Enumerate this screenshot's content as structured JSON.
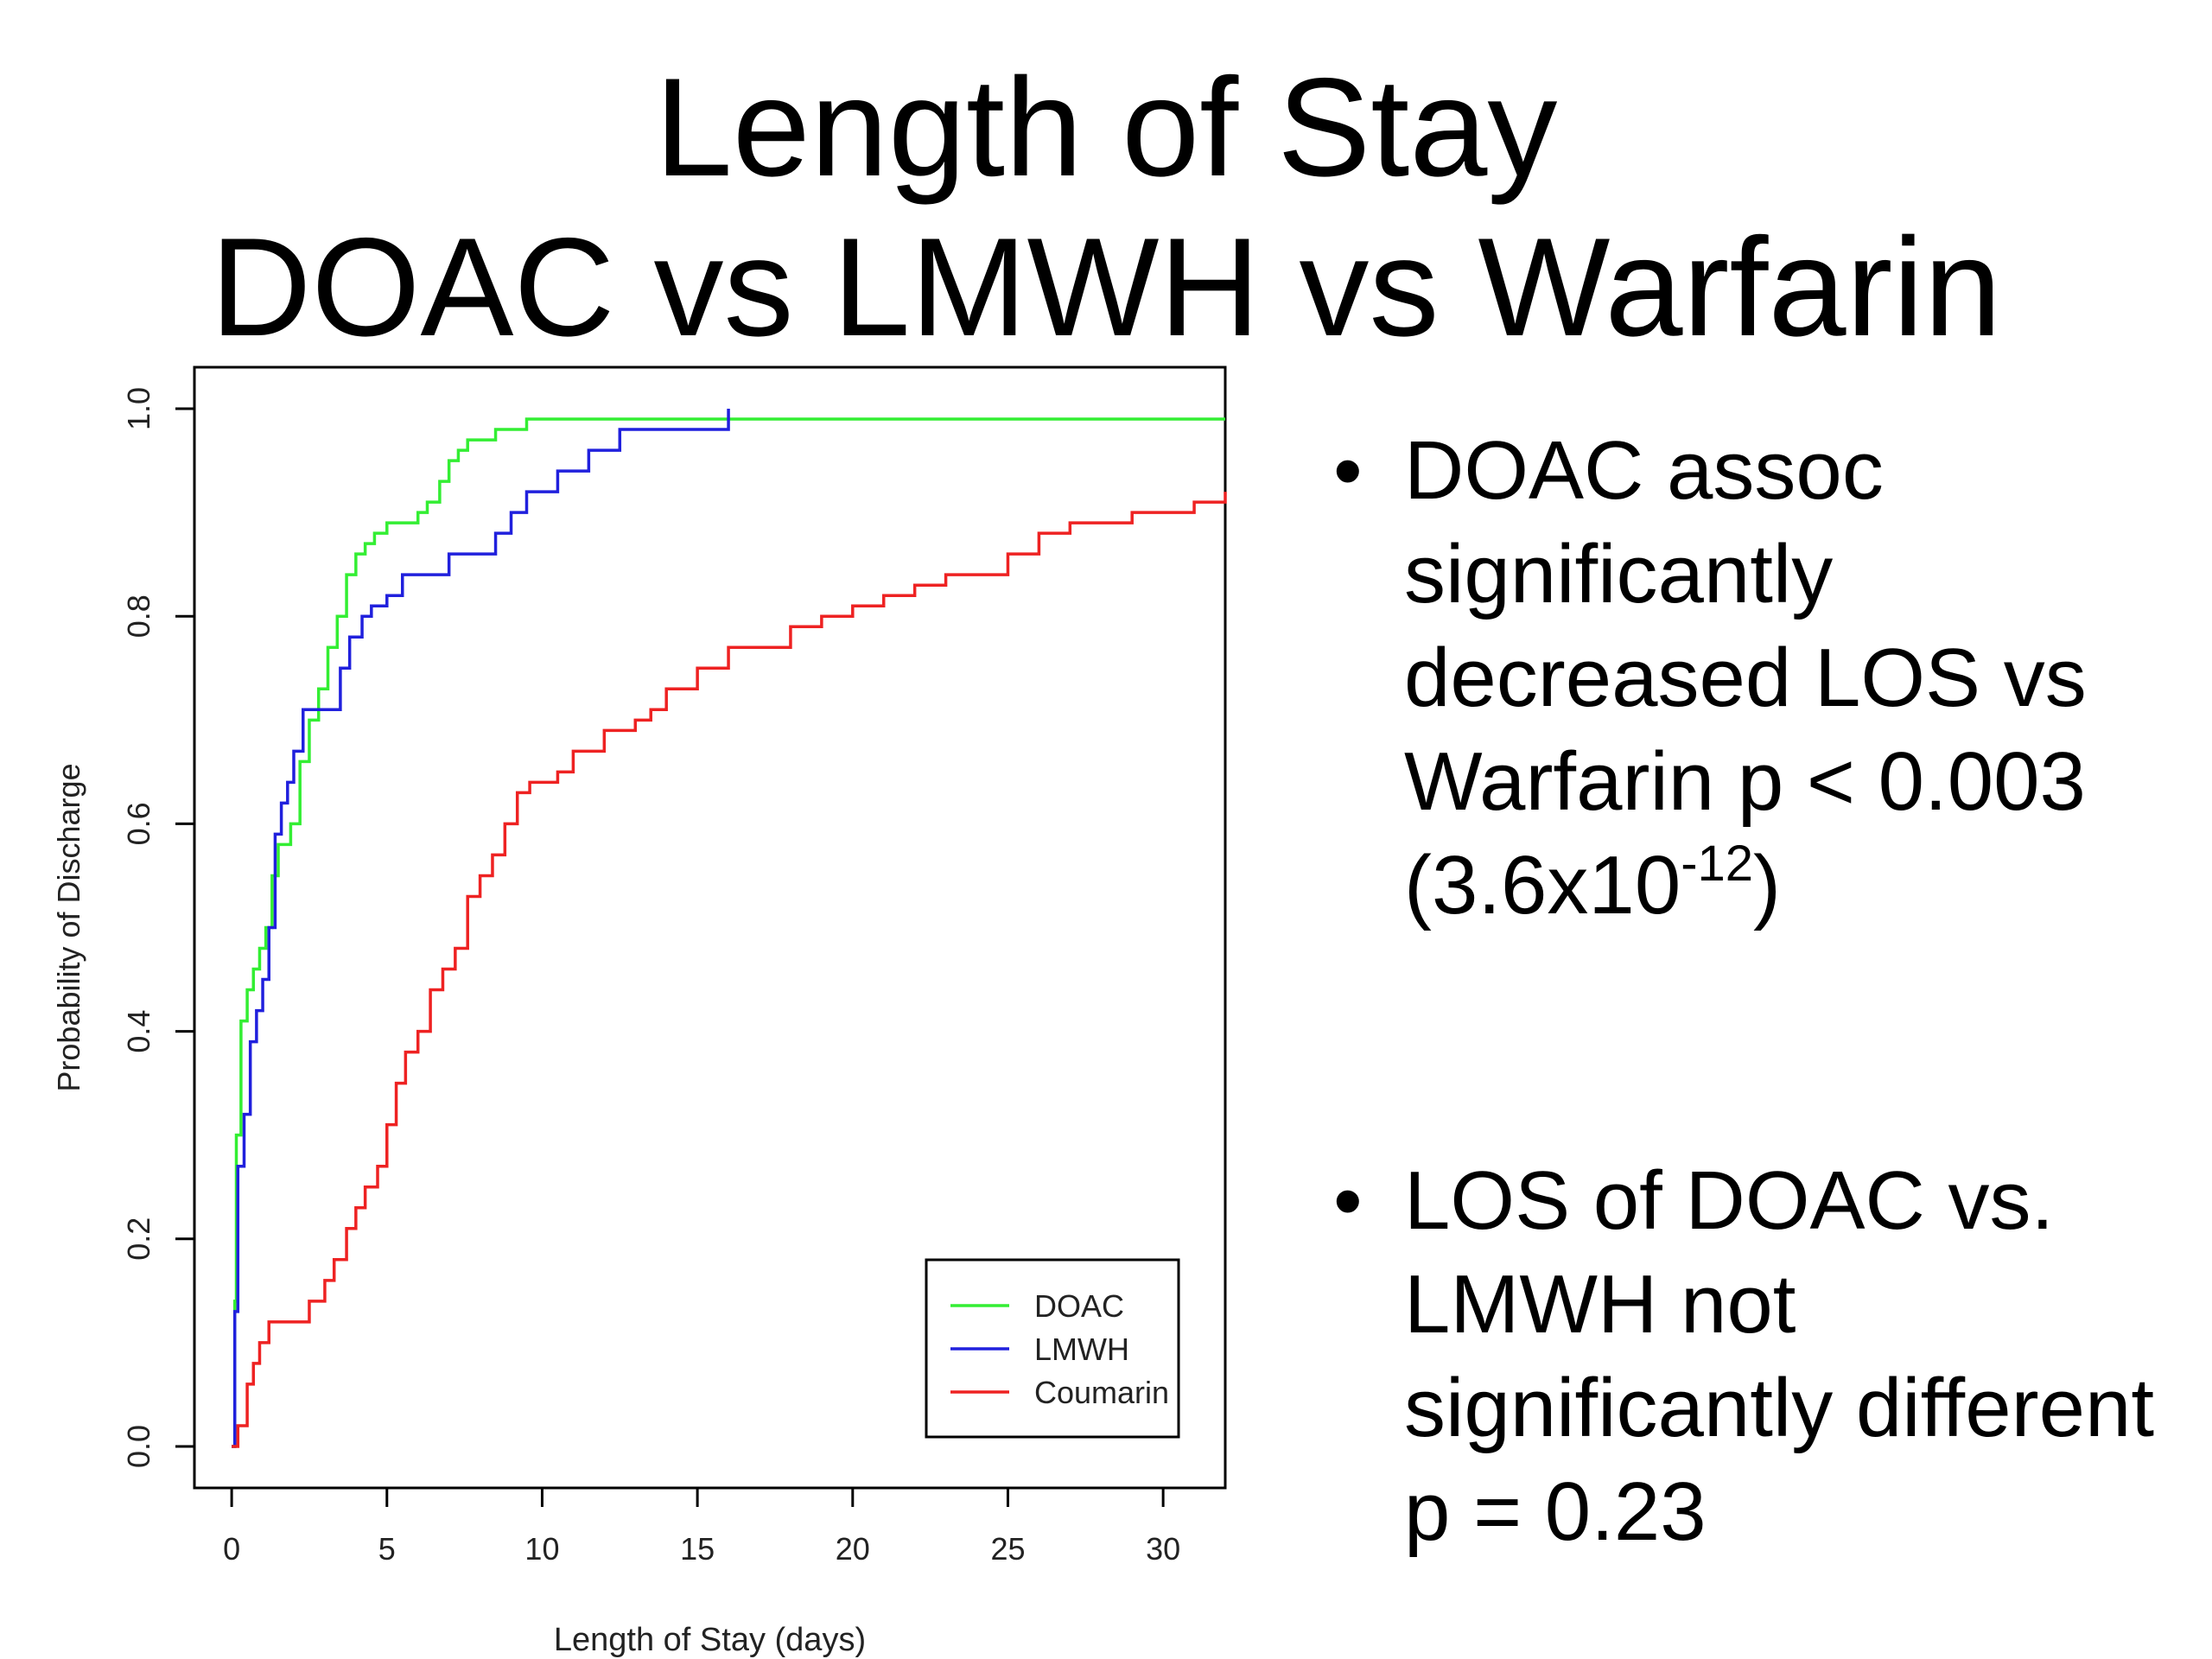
{
  "slide": {
    "title_line1": "Length of Stay",
    "title_line2": "DOAC vs LMWH vs Warfarin",
    "bullets": [
      {
        "marker": "•",
        "text": "DOAC assoc significantly decreased LOS vs Warfarin p < 0.003 (3.6x10",
        "sup": "-12",
        "tail": ")"
      },
      {
        "marker": "•",
        "text": "LOS of DOAC vs. LMWH not significantly different p = 0.23",
        "sup": "",
        "tail": ""
      }
    ]
  },
  "chart_data": {
    "type": "line",
    "step": true,
    "xlabel": "Length of Stay (days)",
    "ylabel": "Probability of Discharge",
    "xlim": [
      -1.2,
      32
    ],
    "ylim": [
      -0.04,
      1.04
    ],
    "xticks": [
      0,
      5,
      10,
      15,
      20,
      25,
      30
    ],
    "yticks": [
      0.0,
      0.2,
      0.4,
      0.6,
      0.8,
      1.0
    ],
    "ytick_labels": [
      "0.0",
      "0.2",
      "0.4",
      "0.6",
      "0.8",
      "1.0"
    ],
    "grid": false,
    "legend": {
      "position": "bottom-right"
    },
    "series": [
      {
        "name": "DOAC",
        "color": "#33ee33",
        "x": [
          0,
          0.1,
          0.15,
          0.3,
          0.5,
          0.7,
          0.9,
          1.1,
          1.3,
          1.5,
          1.7,
          1.9,
          2.2,
          2.5,
          2.8,
          3.1,
          3.4,
          3.7,
          4.0,
          4.3,
          4.6,
          5.0,
          6.0,
          6.3,
          6.7,
          7.0,
          7.3,
          7.6,
          8.0,
          8.5,
          9.0,
          9.5,
          10.0,
          32
        ],
        "y": [
          0.0,
          0.14,
          0.3,
          0.41,
          0.44,
          0.46,
          0.48,
          0.5,
          0.55,
          0.58,
          0.58,
          0.6,
          0.66,
          0.7,
          0.73,
          0.77,
          0.8,
          0.84,
          0.86,
          0.87,
          0.88,
          0.89,
          0.9,
          0.91,
          0.93,
          0.95,
          0.96,
          0.97,
          0.97,
          0.98,
          0.98,
          0.99,
          0.99,
          0.99
        ]
      },
      {
        "name": "LMWH",
        "color": "#2020dd",
        "x": [
          0,
          0.1,
          0.2,
          0.4,
          0.6,
          0.8,
          1.0,
          1.2,
          1.4,
          1.6,
          1.8,
          2.0,
          2.3,
          2.8,
          3.5,
          3.8,
          4.2,
          4.5,
          5.0,
          5.5,
          7.0,
          8.5,
          9.0,
          9.5,
          10.5,
          11.5,
          12.5,
          13.5,
          16.0
        ],
        "y": [
          0.0,
          0.13,
          0.27,
          0.32,
          0.39,
          0.42,
          0.45,
          0.5,
          0.59,
          0.62,
          0.64,
          0.67,
          0.71,
          0.71,
          0.75,
          0.78,
          0.8,
          0.81,
          0.82,
          0.84,
          0.86,
          0.88,
          0.9,
          0.92,
          0.94,
          0.96,
          0.98,
          0.98,
          1.0
        ]
      },
      {
        "name": "Coumarin",
        "color": "#ee2222",
        "x": [
          0,
          0.2,
          0.5,
          0.7,
          0.9,
          1.2,
          1.6,
          2.5,
          3.0,
          3.3,
          3.7,
          4.0,
          4.3,
          4.7,
          5.0,
          5.3,
          5.6,
          6.0,
          6.4,
          6.8,
          7.2,
          7.6,
          8.0,
          8.4,
          8.8,
          9.2,
          9.6,
          10.5,
          11.0,
          12.0,
          13.0,
          13.5,
          14.0,
          15.0,
          16.0,
          18.0,
          19.0,
          20.0,
          21.0,
          22.0,
          23.0,
          25.0,
          26.0,
          27.0,
          29.0,
          31.0,
          32
        ],
        "y": [
          0.0,
          0.02,
          0.06,
          0.08,
          0.1,
          0.12,
          0.12,
          0.14,
          0.16,
          0.18,
          0.21,
          0.23,
          0.25,
          0.27,
          0.31,
          0.35,
          0.38,
          0.4,
          0.44,
          0.46,
          0.48,
          0.53,
          0.55,
          0.57,
          0.6,
          0.63,
          0.64,
          0.65,
          0.67,
          0.69,
          0.7,
          0.71,
          0.73,
          0.75,
          0.77,
          0.79,
          0.8,
          0.81,
          0.82,
          0.83,
          0.84,
          0.86,
          0.88,
          0.89,
          0.9,
          0.91,
          0.92
        ]
      }
    ]
  }
}
